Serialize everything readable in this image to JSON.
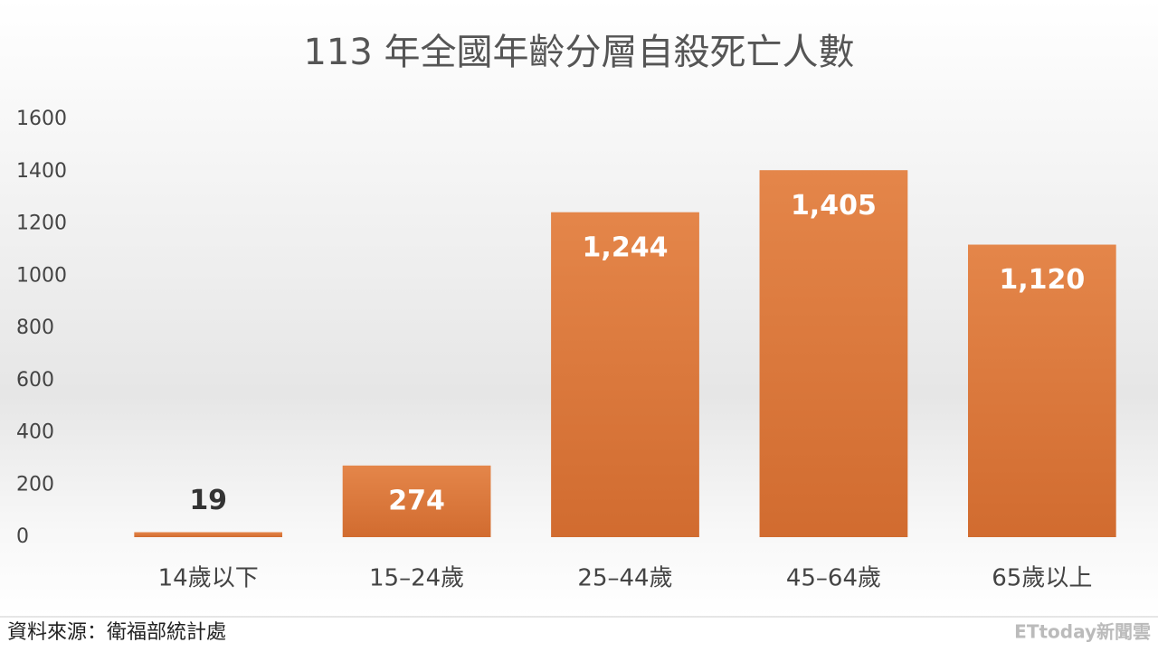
{
  "chart_data": {
    "type": "bar",
    "title": "113 年全國年齡分層自殺死亡人數",
    "categories": [
      "14歲以下",
      "15–24歲",
      "25–44歲",
      "45–64歲",
      "65歲以上"
    ],
    "values": [
      19,
      274,
      1244,
      1405,
      1120
    ],
    "value_labels": [
      "19",
      "274",
      "1,244",
      "1,405",
      "1,120"
    ],
    "color": "#dc7a3e",
    "ylim": [
      0,
      1600
    ],
    "yticks": [
      0,
      200,
      400,
      600,
      800,
      1000,
      1200,
      1400,
      1600
    ],
    "grid": false,
    "source": "資料來源：衛福部統計處",
    "watermark": "ETtoday新聞雲"
  }
}
